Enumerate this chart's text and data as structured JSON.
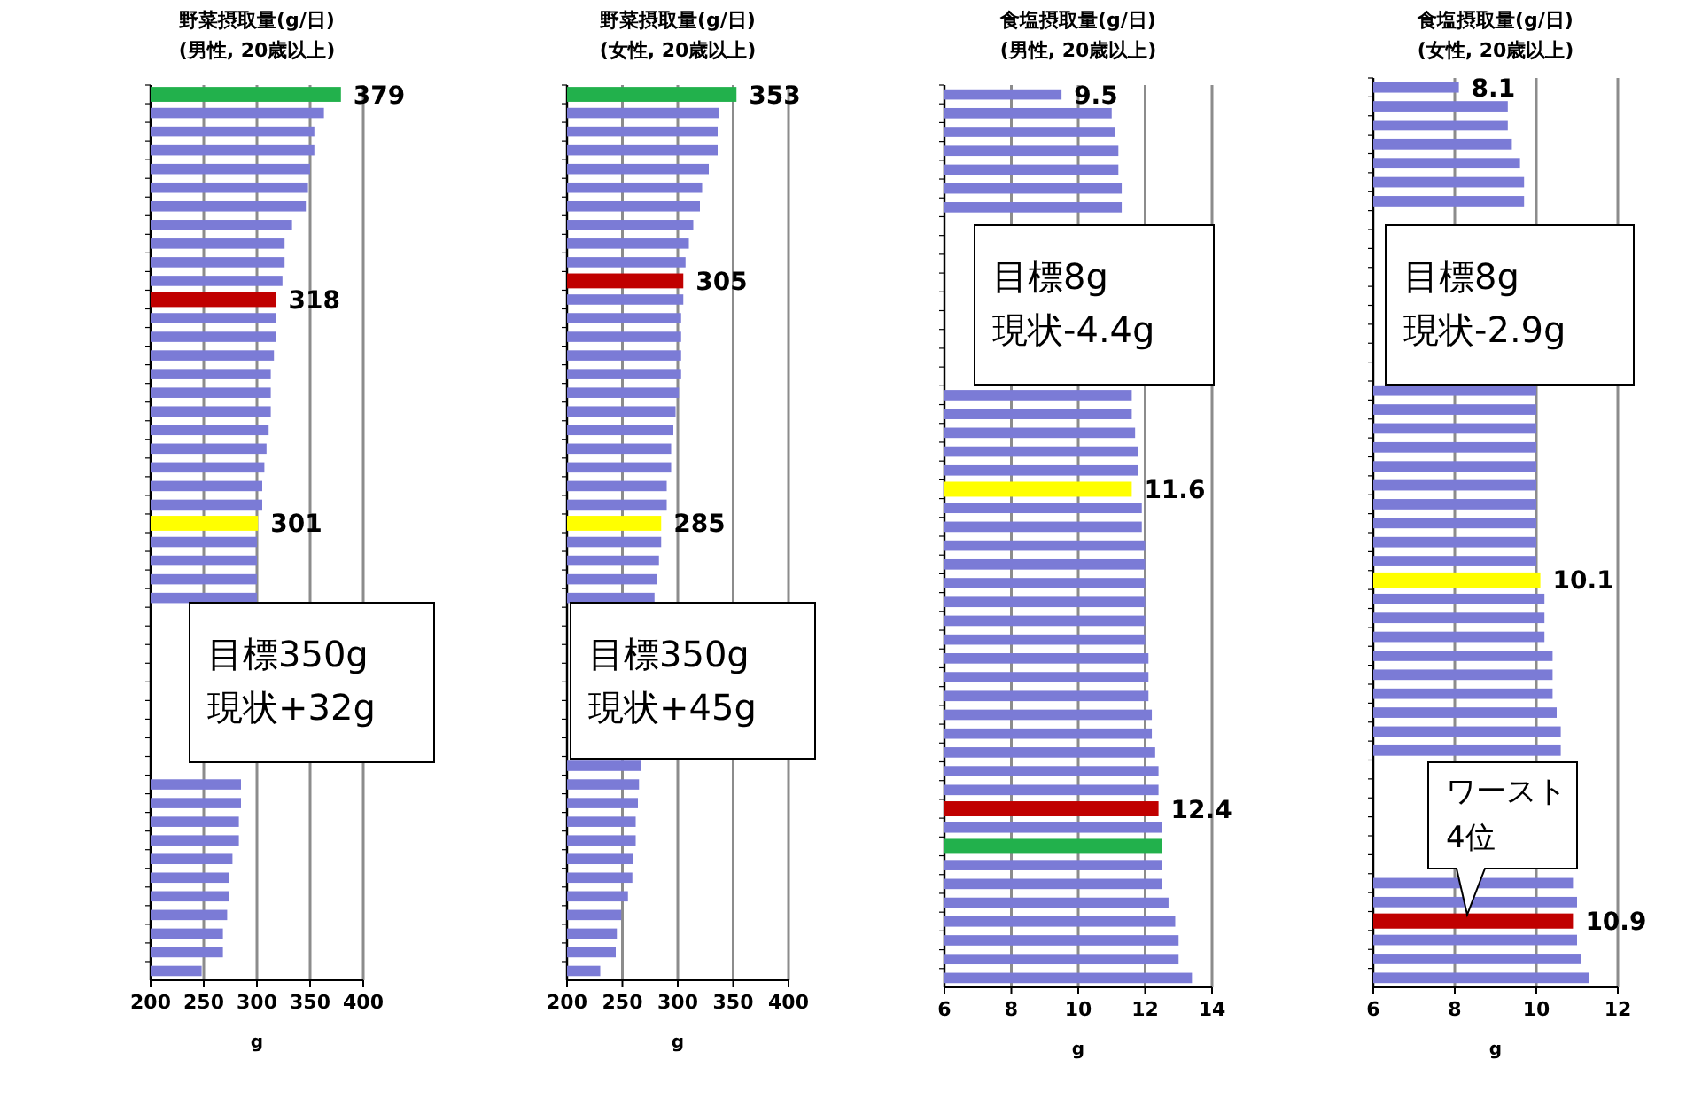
{
  "chart_data": [
    {
      "type": "bar",
      "orientation": "horizontal",
      "title": "野菜摂取量(g/日)",
      "subtitle": "(男性, 20歳以上)",
      "xlabel": "g",
      "xlim": [
        200,
        400
      ],
      "xticks": [
        200,
        250,
        300,
        350,
        400
      ],
      "grid": "x",
      "categories": [
        null,
        null,
        null,
        null,
        null,
        null,
        null,
        null,
        null,
        null,
        null,
        null,
        null,
        null,
        null,
        null,
        null,
        null,
        null,
        null,
        null,
        null,
        null,
        null,
        null,
        null,
        null,
        null,
        null,
        null,
        null,
        null,
        null,
        null,
        null,
        null,
        null,
        null,
        null,
        null,
        null,
        null,
        null,
        null,
        null,
        null,
        null,
        null
      ],
      "values": [
        379,
        363,
        354,
        354,
        350,
        348,
        346,
        333,
        326,
        326,
        324,
        318,
        318,
        318,
        316,
        313,
        313,
        313,
        311,
        309,
        307,
        305,
        305,
        301,
        300,
        300,
        300,
        300,
        null,
        null,
        null,
        null,
        null,
        null,
        null,
        null,
        null,
        285,
        285,
        283,
        283,
        277,
        274,
        274,
        272,
        268,
        268,
        248
      ],
      "value_labels": [
        "379",
        null,
        null,
        null,
        null,
        null,
        null,
        null,
        null,
        null,
        null,
        "318",
        null,
        null,
        null,
        null,
        null,
        null,
        null,
        null,
        null,
        null,
        null,
        "301",
        null,
        null,
        null,
        null,
        null,
        null,
        null,
        null,
        null,
        null,
        null,
        null,
        null,
        null,
        null,
        null,
        null,
        null,
        null,
        null,
        null,
        null,
        null,
        null
      ],
      "colors": [
        "#22b14c",
        "#7b7bd6",
        "#7b7bd6",
        "#7b7bd6",
        "#7b7bd6",
        "#7b7bd6",
        "#7b7bd6",
        "#7b7bd6",
        "#7b7bd6",
        "#7b7bd6",
        "#7b7bd6",
        "#c00000",
        "#7b7bd6",
        "#7b7bd6",
        "#7b7bd6",
        "#7b7bd6",
        "#7b7bd6",
        "#7b7bd6",
        "#7b7bd6",
        "#7b7bd6",
        "#7b7bd6",
        "#7b7bd6",
        "#7b7bd6",
        "#ffff00",
        "#7b7bd6",
        "#7b7bd6",
        "#7b7bd6",
        "#7b7bd6",
        null,
        null,
        null,
        null,
        null,
        null,
        null,
        null,
        null,
        "#7b7bd6",
        "#7b7bd6",
        "#7b7bd6",
        "#7b7bd6",
        "#7b7bd6",
        "#7b7bd6",
        "#7b7bd6",
        "#7b7bd6",
        "#7b7bd6",
        "#7b7bd6",
        "#7b7bd6"
      ],
      "annotations": [
        "目標350g",
        "現状+32g"
      ]
    },
    {
      "type": "bar",
      "orientation": "horizontal",
      "title": "野菜摂取量(g/日)",
      "subtitle": "(女性, 20歳以上)",
      "xlabel": "g",
      "xlim": [
        200,
        400
      ],
      "xticks": [
        200,
        250,
        300,
        350,
        400
      ],
      "grid": "x",
      "categories": [
        null,
        null,
        null,
        null,
        null,
        null,
        null,
        null,
        null,
        null,
        null,
        null,
        null,
        null,
        null,
        null,
        null,
        null,
        null,
        null,
        null,
        null,
        null,
        null,
        null,
        null,
        null,
        null,
        null,
        null,
        null,
        null,
        null,
        null,
        null,
        null,
        null,
        null,
        null,
        null,
        null,
        null,
        null,
        null,
        null,
        null,
        null,
        null
      ],
      "values": [
        353,
        337,
        336,
        336,
        328,
        322,
        320,
        314,
        310,
        307,
        305,
        305,
        303,
        303,
        303,
        303,
        301,
        298,
        296,
        294,
        294,
        290,
        290,
        285,
        285,
        283,
        281,
        279,
        null,
        null,
        null,
        null,
        null,
        null,
        null,
        null,
        267,
        265,
        264,
        262,
        262,
        260,
        259,
        255,
        249,
        245,
        244,
        230
      ],
      "value_labels": [
        "353",
        null,
        null,
        null,
        null,
        null,
        null,
        null,
        null,
        null,
        "305",
        null,
        null,
        null,
        null,
        null,
        null,
        null,
        null,
        null,
        null,
        null,
        null,
        "285",
        null,
        null,
        null,
        null,
        null,
        null,
        null,
        null,
        null,
        null,
        null,
        null,
        null,
        null,
        null,
        null,
        null,
        null,
        null,
        null,
        null,
        null,
        null,
        null
      ],
      "colors": [
        "#22b14c",
        "#7b7bd6",
        "#7b7bd6",
        "#7b7bd6",
        "#7b7bd6",
        "#7b7bd6",
        "#7b7bd6",
        "#7b7bd6",
        "#7b7bd6",
        "#7b7bd6",
        "#c00000",
        "#7b7bd6",
        "#7b7bd6",
        "#7b7bd6",
        "#7b7bd6",
        "#7b7bd6",
        "#7b7bd6",
        "#7b7bd6",
        "#7b7bd6",
        "#7b7bd6",
        "#7b7bd6",
        "#7b7bd6",
        "#7b7bd6",
        "#ffff00",
        "#7b7bd6",
        "#7b7bd6",
        "#7b7bd6",
        "#7b7bd6",
        null,
        null,
        null,
        null,
        null,
        null,
        null,
        null,
        "#7b7bd6",
        "#7b7bd6",
        "#7b7bd6",
        "#7b7bd6",
        "#7b7bd6",
        "#7b7bd6",
        "#7b7bd6",
        "#7b7bd6",
        "#7b7bd6",
        "#7b7bd6",
        "#7b7bd6",
        "#7b7bd6"
      ],
      "annotations": [
        "目標350g",
        "現状+45g"
      ]
    },
    {
      "type": "bar",
      "orientation": "horizontal",
      "title": "食塩摂取量(g/日)",
      "subtitle": "(男性, 20歳以上)",
      "xlabel": "g",
      "xlim": [
        6,
        14
      ],
      "xticks": [
        6,
        8,
        10,
        12,
        14
      ],
      "grid": "x",
      "categories": [
        null,
        null,
        null,
        null,
        null,
        null,
        null,
        null,
        null,
        null,
        null,
        null,
        null,
        null,
        null,
        null,
        null,
        null,
        null,
        null,
        null,
        null,
        null,
        null,
        null,
        null,
        null,
        null,
        null,
        null,
        null,
        null,
        null,
        null,
        null,
        null,
        null,
        null,
        null,
        null,
        null,
        null,
        null,
        null,
        null,
        null,
        null,
        null
      ],
      "values": [
        9.5,
        11.0,
        11.1,
        11.2,
        11.2,
        11.3,
        11.3,
        null,
        null,
        null,
        null,
        null,
        null,
        null,
        null,
        null,
        11.6,
        11.6,
        11.7,
        11.8,
        11.8,
        11.6,
        11.9,
        11.9,
        12.0,
        12.0,
        12.0,
        12.0,
        12.0,
        12.0,
        12.1,
        12.1,
        12.1,
        12.2,
        12.2,
        12.3,
        12.4,
        12.4,
        12.4,
        12.5,
        12.5,
        12.5,
        12.5,
        12.7,
        12.9,
        13.0,
        13.0,
        13.4
      ],
      "value_labels": [
        "9.5",
        null,
        null,
        null,
        null,
        null,
        null,
        null,
        null,
        null,
        null,
        null,
        null,
        null,
        null,
        null,
        null,
        null,
        null,
        null,
        null,
        "11.6",
        null,
        null,
        null,
        null,
        null,
        null,
        null,
        null,
        null,
        null,
        null,
        null,
        null,
        null,
        null,
        null,
        "12.4",
        null,
        null,
        null,
        null,
        null,
        null,
        null,
        null,
        null
      ],
      "colors": [
        "#7b7bd6",
        "#7b7bd6",
        "#7b7bd6",
        "#7b7bd6",
        "#7b7bd6",
        "#7b7bd6",
        "#7b7bd6",
        null,
        null,
        null,
        null,
        null,
        null,
        null,
        null,
        null,
        "#7b7bd6",
        "#7b7bd6",
        "#7b7bd6",
        "#7b7bd6",
        "#7b7bd6",
        "#ffff00",
        "#7b7bd6",
        "#7b7bd6",
        "#7b7bd6",
        "#7b7bd6",
        "#7b7bd6",
        "#7b7bd6",
        "#7b7bd6",
        "#7b7bd6",
        "#7b7bd6",
        "#7b7bd6",
        "#7b7bd6",
        "#7b7bd6",
        "#7b7bd6",
        "#7b7bd6",
        "#7b7bd6",
        "#7b7bd6",
        "#c00000",
        "#7b7bd6",
        "#22b14c",
        "#7b7bd6",
        "#7b7bd6",
        "#7b7bd6",
        "#7b7bd6",
        "#7b7bd6",
        "#7b7bd6",
        "#7b7bd6"
      ],
      "annotations": [
        "目標8g",
        "現状-4.4g"
      ]
    },
    {
      "type": "bar",
      "orientation": "horizontal",
      "title": "食塩摂取量(g/日)",
      "subtitle": "(女性, 20歳以上)",
      "xlabel": "g",
      "xlim": [
        6,
        12
      ],
      "xticks": [
        6,
        8,
        10,
        12
      ],
      "grid": "x",
      "categories": [
        null,
        null,
        null,
        null,
        null,
        null,
        null,
        null,
        null,
        null,
        null,
        null,
        null,
        null,
        null,
        null,
        null,
        null,
        null,
        null,
        null,
        null,
        null,
        null,
        null,
        null,
        null,
        null,
        null,
        null,
        null,
        null,
        null,
        null,
        null,
        null,
        null,
        null,
        null,
        null,
        null,
        null,
        null,
        null,
        null,
        null,
        null,
        null
      ],
      "values": [
        8.1,
        9.3,
        9.3,
        9.4,
        9.6,
        9.7,
        9.7,
        null,
        null,
        null,
        null,
        null,
        null,
        null,
        null,
        null,
        10.0,
        10.0,
        10.0,
        10.0,
        10.0,
        10.0,
        10.0,
        10.0,
        10.0,
        10.0,
        10.1,
        10.2,
        10.2,
        10.2,
        10.4,
        10.4,
        10.4,
        10.5,
        10.6,
        10.6,
        null,
        null,
        null,
        null,
        null,
        null,
        10.9,
        11.0,
        10.9,
        11.0,
        11.1,
        11.3
      ],
      "value_labels": [
        "8.1",
        null,
        null,
        null,
        null,
        null,
        null,
        null,
        null,
        null,
        null,
        null,
        null,
        null,
        null,
        null,
        null,
        null,
        null,
        null,
        null,
        null,
        null,
        null,
        null,
        null,
        "10.1",
        null,
        null,
        null,
        null,
        null,
        null,
        null,
        null,
        null,
        null,
        null,
        null,
        null,
        null,
        null,
        null,
        null,
        "10.9",
        null,
        null,
        null
      ],
      "colors": [
        "#7b7bd6",
        "#7b7bd6",
        "#7b7bd6",
        "#7b7bd6",
        "#7b7bd6",
        "#7b7bd6",
        "#7b7bd6",
        null,
        null,
        null,
        null,
        null,
        null,
        null,
        null,
        null,
        "#7b7bd6",
        "#7b7bd6",
        "#7b7bd6",
        "#7b7bd6",
        "#7b7bd6",
        "#7b7bd6",
        "#7b7bd6",
        "#7b7bd6",
        "#7b7bd6",
        "#7b7bd6",
        "#ffff00",
        "#7b7bd6",
        "#7b7bd6",
        "#7b7bd6",
        "#7b7bd6",
        "#7b7bd6",
        "#7b7bd6",
        "#7b7bd6",
        "#7b7bd6",
        "#7b7bd6",
        null,
        null,
        null,
        null,
        null,
        null,
        "#7b7bd6",
        "#7b7bd6",
        "#c00000",
        "#7b7bd6",
        "#7b7bd6",
        "#7b7bd6"
      ],
      "annotations": [
        "目標8g",
        "現状-2.9g",
        "ワースト",
        "4位"
      ]
    }
  ]
}
